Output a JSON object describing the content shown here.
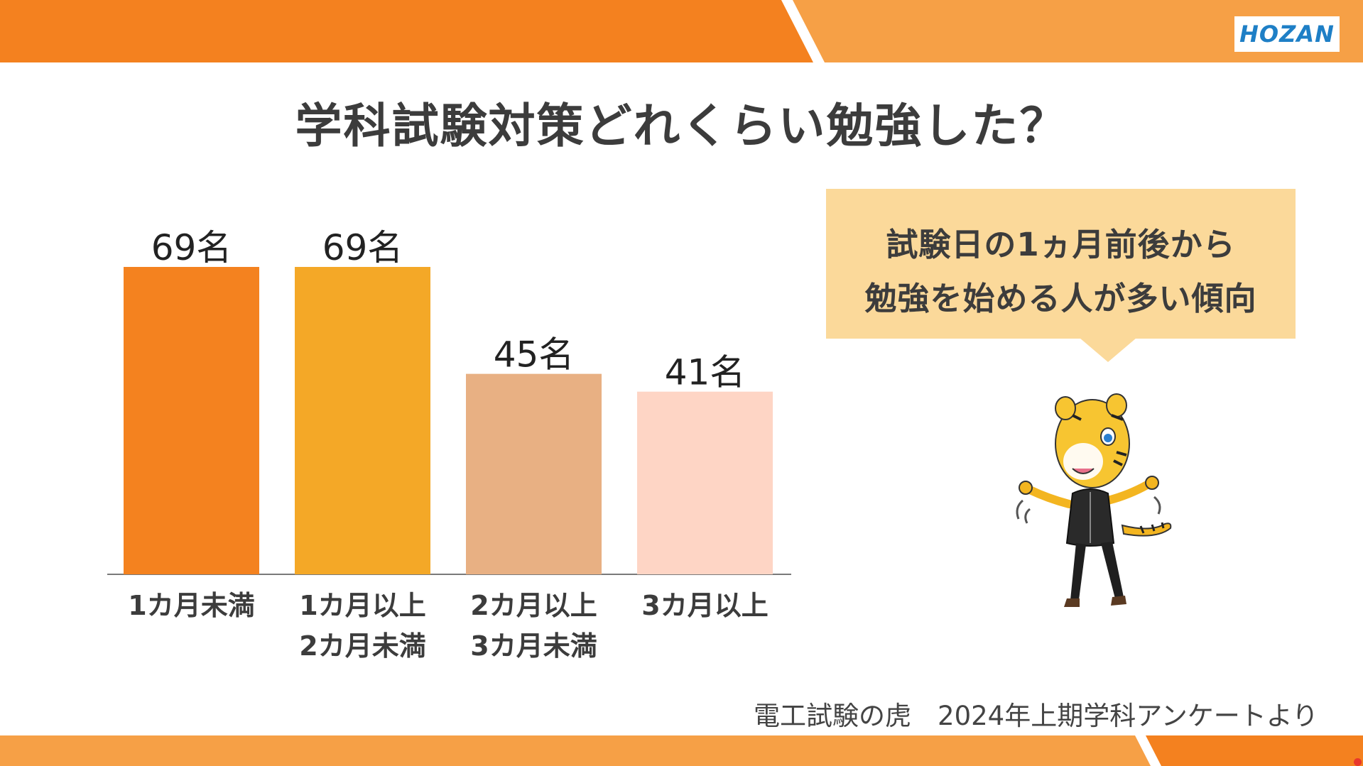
{
  "header": {
    "logo_text": "HOZAN",
    "colors": {
      "band_left": "#f4811f",
      "band_right": "#f6a046",
      "logo": "#1e7fc6"
    }
  },
  "title": "学科試験対策どれくらい勉強した？",
  "chart_data": {
    "type": "bar",
    "categories": [
      [
        "1カ月未満"
      ],
      [
        "1カ月以上",
        "2カ月未満"
      ],
      [
        "2カ月以上",
        "3カ月未満"
      ],
      [
        "3カ月以上"
      ]
    ],
    "values": [
      69,
      69,
      45,
      41
    ],
    "value_labels": [
      "69名",
      "69名",
      "45名",
      "41名"
    ],
    "bar_colors": [
      "#f4821f",
      "#f4a827",
      "#e8b083",
      "#fed5c5"
    ],
    "ylim": [
      0,
      69
    ],
    "grid": false,
    "title": "",
    "xlabel": "",
    "ylabel": ""
  },
  "callout": {
    "line1": "試験日の1ヵ月前後から",
    "line2": "勉強を始める人が多い傾向"
  },
  "mascot": {
    "icon": "tiger-mascot-illustration"
  },
  "source": "電工試験の虎　2024年上期学科アンケートより"
}
